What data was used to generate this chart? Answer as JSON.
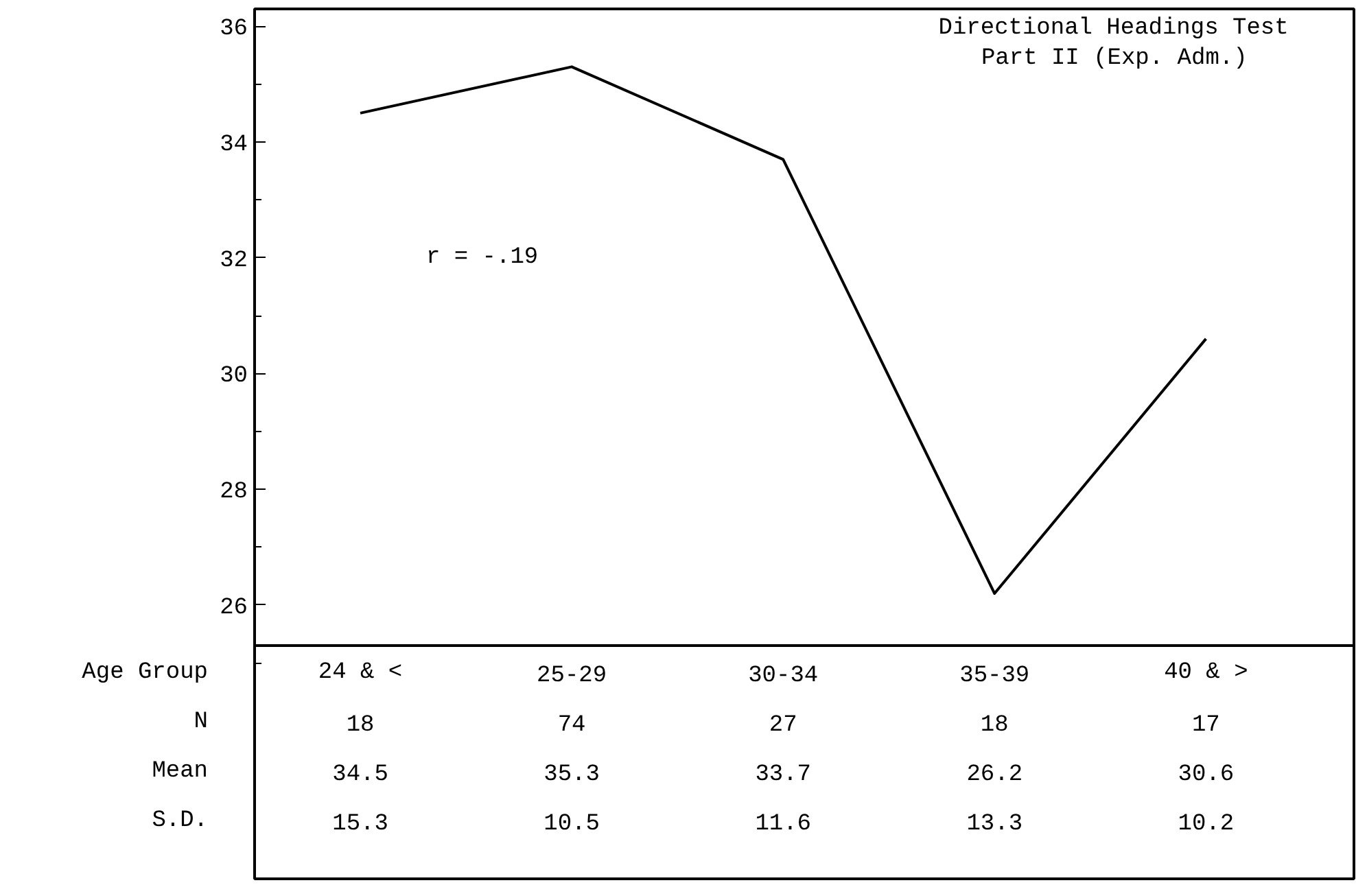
{
  "chart_data": {
    "type": "line",
    "title": "Directional Headings Test",
    "subtitle": "Part II (Exp. Adm.)",
    "xlabel": "Age Group",
    "categories": [
      "24 & <",
      "25-29",
      "30-34",
      "35-39",
      "40 & >"
    ],
    "series": [
      {
        "name": "Mean",
        "color": "#000000",
        "values": [
          34.5,
          35.3,
          33.7,
          26.2,
          30.6
        ]
      }
    ],
    "data_labels": true,
    "ylim": [
      25.3,
      36.3
    ],
    "yticks": [
      26,
      28,
      30,
      32,
      34,
      36
    ],
    "grid": false,
    "legend": false,
    "marker": "none",
    "line_style": "solid",
    "annotations": [
      "r = -.19",
      "N",
      "18",
      "74",
      "27",
      "18",
      "17",
      "S.D.",
      "15.3",
      "10.5",
      "11.6",
      "13.3",
      "10.2"
    ]
  }
}
